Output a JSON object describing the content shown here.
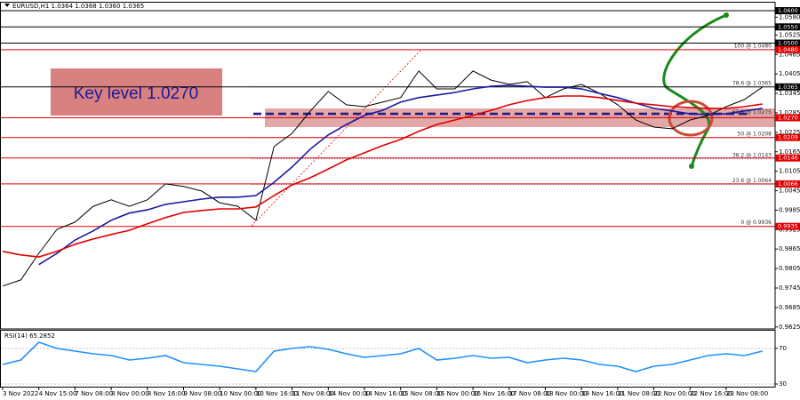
{
  "chart_data": [
    {
      "type": "line",
      "title": "EURUSD,H1  1.0364 1.0368 1.0360 1.0365",
      "annotation": "Key level 1.0270",
      "categories": [
        "3 Nov 2022",
        null,
        "4 Nov 15:00",
        null,
        "7 Nov 08:00",
        null,
        "8 Nov 00:00",
        null,
        "8 Nov 16:00",
        null,
        "9 Nov 08:00",
        null,
        "10 Nov 00:00",
        null,
        "10 Nov 16:00",
        null,
        "11 Nov 08:00",
        null,
        "14 Nov 00:00",
        null,
        "14 Nov 16:00",
        null,
        "15 Nov 08:00",
        null,
        "16 Nov 00:00",
        null,
        "16 Nov 16:00",
        null,
        "17 Nov 08:00",
        null,
        "18 Nov 00:00",
        null,
        "18 Nov 16:00",
        null,
        "21 Nov 08:00",
        null,
        "22 Nov 00:00",
        null,
        "22 Nov 16:00",
        null,
        "23 Nov 08:00",
        null,
        null
      ],
      "series": [
        {
          "color": "#000000",
          "values": [
            0.9751,
            0.977,
            0.9852,
            0.9926,
            0.9948,
            0.9997,
            1.0017,
            0.9997,
            1.0017,
            1.0066,
            1.0058,
            1.0044,
            1.0008,
            0.9997,
            0.9954,
            1.0181,
            1.0222,
            1.029,
            1.0351,
            1.031,
            1.0304,
            1.0318,
            1.0332,
            1.0414,
            1.0359,
            1.0359,
            1.0414,
            1.0386,
            1.0373,
            1.0381,
            1.0332,
            1.0359,
            1.0373,
            1.0345,
            1.031,
            1.0263,
            1.0241,
            1.0236,
            1.0263,
            1.0277,
            1.0304,
            1.0326,
            1.0364
          ]
        },
        {
          "color": "#1a1aa0",
          "values": [
            null,
            null,
            0.9817,
            0.9852,
            0.9893,
            0.9921,
            0.9954,
            0.9976,
            0.9986,
            1.0003,
            1.0011,
            1.0019,
            1.0025,
            1.0025,
            1.003,
            1.0071,
            1.0118,
            1.0173,
            1.0217,
            1.0249,
            1.0277,
            1.0293,
            1.0318,
            1.0332,
            1.034,
            1.0348,
            1.0359,
            1.0367,
            1.037,
            1.0367,
            1.0364,
            1.0364,
            1.0359,
            1.0345,
            1.0332,
            1.0315,
            1.0299,
            1.0291,
            1.0282,
            1.028,
            1.0282,
            1.0291,
            1.0299
          ]
        },
        {
          "color": "#e00000",
          "values": [
            0.9858,
            0.9847,
            0.9841,
            0.9858,
            0.988,
            0.9896,
            0.991,
            0.9923,
            0.9943,
            0.9962,
            0.9978,
            0.9984,
            0.9989,
            0.9989,
            0.9995,
            1.003,
            1.0063,
            1.0085,
            1.0112,
            1.014,
            1.0162,
            1.0184,
            1.0203,
            1.0228,
            1.0249,
            1.0263,
            1.0277,
            1.0293,
            1.031,
            1.0323,
            1.0332,
            1.0337,
            1.0337,
            1.0332,
            1.0323,
            1.0315,
            1.031,
            1.0304,
            1.0301,
            1.0299,
            1.0299,
            1.0304,
            1.0312
          ]
        }
      ],
      "ylim": [
        0.9619,
        1.0622
      ],
      "yticks": [
        {
          "value": 1.058,
          "label": "1.0580"
        },
        {
          "value": 1.0525,
          "label": "1.0525"
        },
        {
          "value": 1.0465,
          "label": "1.0465"
        },
        {
          "value": 1.0405,
          "label": "1.0405"
        },
        {
          "value": 1.0345,
          "label": "1.0345"
        },
        {
          "value": 1.0285,
          "label": "1.0285"
        },
        {
          "value": 1.0225,
          "label": "1.0225"
        },
        {
          "value": 1.0165,
          "label": "1.0165"
        },
        {
          "value": 1.0105,
          "label": "1.0105"
        },
        {
          "value": 1.0045,
          "label": "1.0045"
        },
        {
          "value": 0.9985,
          "label": "0.9985"
        },
        {
          "value": 0.9925,
          "label": "0.9925"
        },
        {
          "value": 0.9865,
          "label": "0.9865"
        },
        {
          "value": 0.9805,
          "label": "0.9805"
        },
        {
          "value": 0.9745,
          "label": "0.9745"
        },
        {
          "value": 0.9685,
          "label": "0.9685"
        },
        {
          "value": 0.9625,
          "label": "0.9625"
        }
      ],
      "levels": [
        {
          "value": 1.06,
          "label": "1.0600",
          "color": "#000000"
        },
        {
          "value": 1.055,
          "label": "1.0550",
          "color": "#000000"
        },
        {
          "value": 1.05,
          "label": "1.0500",
          "color": "#000000"
        },
        {
          "value": 1.048,
          "label": "1.0480",
          "color": "#e00000"
        },
        {
          "value": 1.027,
          "label": "1.0270",
          "color": "#e00000"
        },
        {
          "value": 1.0209,
          "label": "1.0209",
          "color": "#e00000"
        },
        {
          "value": 1.0146,
          "label": "1.0146",
          "color": "#e00000"
        },
        {
          "value": 1.0066,
          "label": "1.0066",
          "color": "#e00000"
        },
        {
          "value": 0.9935,
          "label": "0.9935",
          "color": "#e00000"
        }
      ],
      "last_price": {
        "value": 1.0365,
        "label": "1.0365",
        "color": "#000000"
      },
      "fibonacci": [
        {
          "value": 1.048,
          "label": "100 @ 1.0480"
        },
        {
          "value": 1.0365,
          "label": "78.6 @ 1.0365"
        },
        {
          "value": 1.0275,
          "label": "61.8 @ 1.0275"
        },
        {
          "value": 1.0208,
          "label": "50 @ 1.0208"
        },
        {
          "value": 1.0143,
          "label": "38.2 @ 1.0143"
        },
        {
          "value": 1.0064,
          "label": "23.6 @ 1.0064"
        },
        {
          "value": 0.9936,
          "label": "0 @ 0.9936"
        }
      ],
      "grid": false
    },
    {
      "type": "line",
      "title": "RSI(14) 65.2852",
      "series": [
        {
          "color": "#1e90ff",
          "values": [
            52,
            57,
            77,
            70,
            67,
            64,
            62,
            57,
            59,
            62,
            54,
            52,
            50,
            47,
            44,
            67,
            70,
            72,
            69,
            64,
            60,
            62,
            64,
            70,
            57,
            59,
            62,
            59,
            60,
            54,
            57,
            59,
            57,
            52,
            50,
            44,
            50,
            52,
            57,
            62,
            64,
            62,
            67
          ]
        }
      ],
      "ylim": [
        26,
        90
      ],
      "yticks": [
        70,
        30
      ],
      "grid": true
    }
  ]
}
